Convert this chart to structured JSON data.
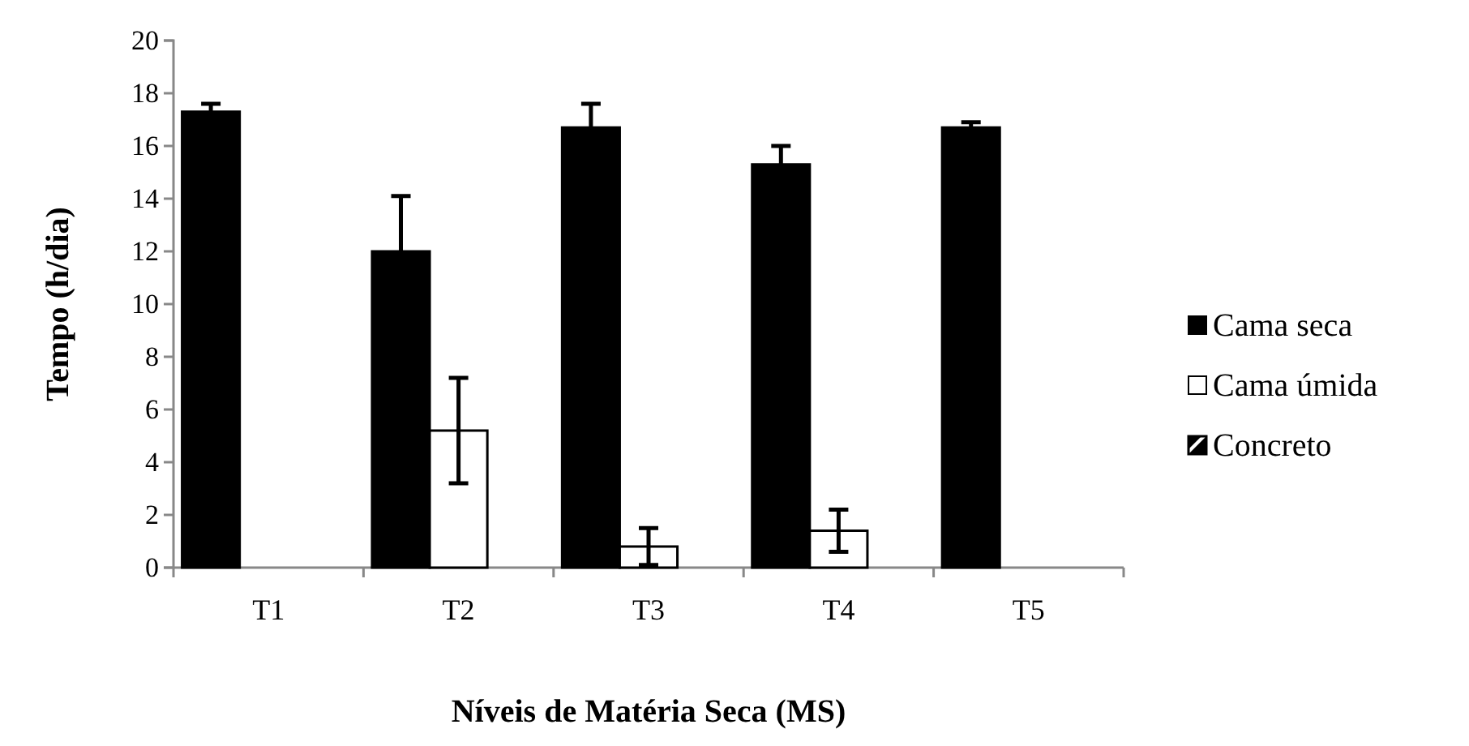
{
  "chart_data": {
    "type": "bar",
    "xlabel": "Níveis de Matéria Seca (MS)",
    "ylabel": "Tempo (h/dia)",
    "categories": [
      "T1",
      "T2",
      "T3",
      "T4",
      "T5"
    ],
    "series": [
      {
        "name": "Cama seca",
        "color": "#000000",
        "values": [
          17.3,
          12.0,
          16.7,
          15.3,
          16.7
        ],
        "errors": [
          0.3,
          2.1,
          0.9,
          0.7,
          0.2
        ]
      },
      {
        "name": "Cama úmida",
        "color": "#ffffff",
        "values": [
          0,
          5.2,
          0.8,
          1.4,
          0
        ],
        "errors": [
          null,
          2.0,
          0.7,
          0.8,
          null
        ]
      },
      {
        "name": "Concreto",
        "color": "#000000",
        "values": [
          0,
          0,
          0,
          0,
          0
        ]
      }
    ],
    "ylim": [
      0,
      20
    ],
    "yticks": [
      0,
      2,
      4,
      6,
      8,
      10,
      12,
      14,
      16,
      18,
      20
    ],
    "legend": "right",
    "grid": false
  }
}
